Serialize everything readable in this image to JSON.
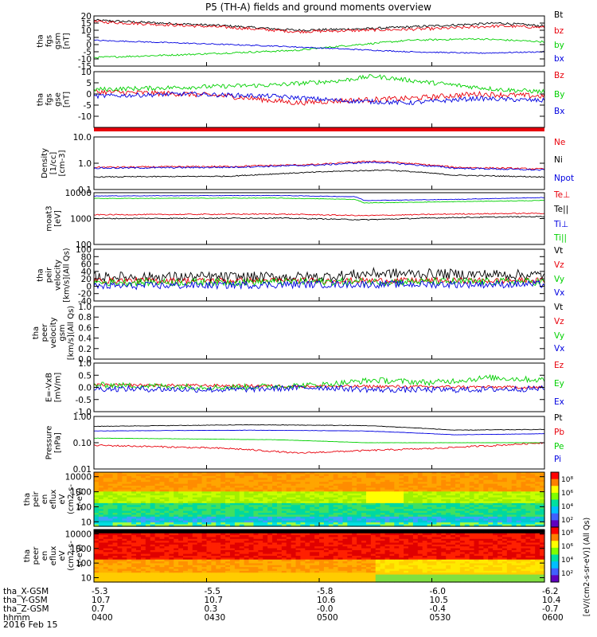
{
  "title": "P5 (TH-A) fields and ground moments overview",
  "date": "2016 Feb 15",
  "colors": {
    "black": "#000000",
    "red": "#e8000b",
    "green": "#00d000",
    "blue": "#0000e0"
  },
  "orbit": {
    "row_labels": [
      "tha_X-GSM",
      "tha_Y-GSM",
      "tha_Z-GSM",
      "hhmm"
    ],
    "columns": [
      [
        "-5.3",
        "10.7",
        "0.7",
        "0400"
      ],
      [
        "-5.5",
        "10.7",
        "0.3",
        "0430"
      ],
      [
        "-5.8",
        "10.6",
        "-0.0",
        "0500"
      ],
      [
        "-6.0",
        "10.5",
        "-0.4",
        "0530"
      ],
      [
        "-6.2",
        "10.4",
        "-0.7",
        "0600"
      ]
    ]
  },
  "colorbar": {
    "label": "[eV/(cm2-s-sr-eV)] (All Qs)",
    "upper_ticks": [
      "10⁸",
      "10⁶",
      "10⁴",
      "10²"
    ],
    "lower_ticks": [
      "10⁸",
      "10⁶",
      "10⁴",
      "10²"
    ]
  },
  "chart_data": [
    {
      "id": "p1",
      "type": "line",
      "ylabel": [
        "tha",
        "fgs",
        "gsm",
        "[nT]"
      ],
      "ylim": [
        -15,
        20
      ],
      "scale": "linear",
      "ticks": [
        "20",
        "15",
        "10",
        "5",
        "0",
        "-5",
        "-10",
        "-15"
      ],
      "series": [
        {
          "name": "Bt",
          "color": "black",
          "points": [
            [
              0,
              17
            ],
            [
              0.15,
              15
            ],
            [
              0.3,
              13
            ],
            [
              0.45,
              10
            ],
            [
              0.6,
              11
            ],
            [
              0.75,
              13
            ],
            [
              0.9,
              15
            ],
            [
              1,
              13
            ]
          ],
          "noise": 0.8
        },
        {
          "name": "bz",
          "color": "red",
          "points": [
            [
              0,
              16
            ],
            [
              0.15,
              14
            ],
            [
              0.3,
              12
            ],
            [
              0.45,
              9
            ],
            [
              0.6,
              10
            ],
            [
              0.75,
              11
            ],
            [
              0.9,
              13
            ],
            [
              1,
              12
            ]
          ],
          "noise": 1.0
        },
        {
          "name": "by",
          "color": "green",
          "points": [
            [
              0,
              -9
            ],
            [
              0.2,
              -7
            ],
            [
              0.45,
              -4
            ],
            [
              0.55,
              -1
            ],
            [
              0.7,
              3
            ],
            [
              0.85,
              4
            ],
            [
              1,
              2
            ]
          ],
          "noise": 0.6
        },
        {
          "name": "bx",
          "color": "blue",
          "points": [
            [
              0,
              3
            ],
            [
              0.2,
              1
            ],
            [
              0.4,
              -1
            ],
            [
              0.55,
              -3
            ],
            [
              0.7,
              -5
            ],
            [
              0.85,
              -6
            ],
            [
              1,
              -5
            ]
          ],
          "noise": 0.4
        }
      ]
    },
    {
      "id": "p2",
      "type": "line",
      "ylabel": [
        "tha",
        "fgs",
        "gse",
        "[nT]"
      ],
      "ylim": [
        -15,
        10
      ],
      "scale": "linear",
      "ticks": [
        "10",
        "5",
        "0",
        "-5",
        "-10"
      ],
      "series": [
        {
          "name": "Bz",
          "color": "red",
          "points": [
            [
              0,
              1
            ],
            [
              0.2,
              0
            ],
            [
              0.3,
              -1
            ],
            [
              0.45,
              -4
            ],
            [
              0.55,
              -3
            ],
            [
              0.7,
              -2
            ],
            [
              0.85,
              0
            ],
            [
              1,
              -1
            ]
          ],
          "noise": 1.2
        },
        {
          "name": "By",
          "color": "green",
          "points": [
            [
              0,
              2
            ],
            [
              0.2,
              3
            ],
            [
              0.4,
              4
            ],
            [
              0.55,
              6
            ],
            [
              0.62,
              8
            ],
            [
              0.75,
              5
            ],
            [
              0.9,
              2
            ],
            [
              1,
              1
            ]
          ],
          "noise": 1.0
        },
        {
          "name": "Bx",
          "color": "blue",
          "points": [
            [
              0,
              -1
            ],
            [
              0.2,
              0
            ],
            [
              0.4,
              -1
            ],
            [
              0.55,
              -3
            ],
            [
              0.7,
              -4
            ],
            [
              0.85,
              -2
            ],
            [
              1,
              -3
            ]
          ],
          "noise": 1.0
        }
      ]
    },
    {
      "id": "p3",
      "type": "line",
      "ylabel": [
        "Density",
        "[1/cc]",
        "[cm-3]"
      ],
      "ylim": [
        0.1,
        10
      ],
      "scale": "log",
      "ticks": [
        "10.0",
        "1.0",
        "0.1"
      ],
      "series": [
        {
          "name": "Ne",
          "color": "red",
          "points": [
            [
              0,
              0.7
            ],
            [
              0.3,
              0.75
            ],
            [
              0.5,
              0.9
            ],
            [
              0.62,
              1.2
            ],
            [
              0.8,
              0.7
            ],
            [
              1,
              0.6
            ]
          ],
          "noise": 0.03
        },
        {
          "name": "Ni",
          "color": "black",
          "points": [
            [
              0,
              0.3
            ],
            [
              0.3,
              0.32
            ],
            [
              0.55,
              0.5
            ],
            [
              0.65,
              0.55
            ],
            [
              0.8,
              0.35
            ],
            [
              1,
              0.3
            ]
          ],
          "noise": 0.02
        },
        {
          "name": "Npot",
          "color": "blue",
          "points": [
            [
              0,
              0.65
            ],
            [
              0.3,
              0.7
            ],
            [
              0.5,
              0.85
            ],
            [
              0.62,
              1.1
            ],
            [
              0.8,
              0.65
            ],
            [
              1,
              0.55
            ]
          ],
          "noise": 0.03
        }
      ]
    },
    {
      "id": "p4",
      "type": "line",
      "ylabel": [
        "moat3",
        "[eV]"
      ],
      "ylim": [
        100,
        10000
      ],
      "scale": "log",
      "ticks": [
        "10000",
        "1000",
        "100"
      ],
      "series": [
        {
          "name": "Te⊥",
          "color": "red",
          "points": [
            [
              0,
              1400
            ],
            [
              0.4,
              1500
            ],
            [
              0.6,
              1300
            ],
            [
              0.8,
              1500
            ],
            [
              1,
              1600
            ]
          ],
          "noise": 0.02
        },
        {
          "name": "Te||",
          "color": "black",
          "points": [
            [
              0,
              1000
            ],
            [
              0.4,
              1050
            ],
            [
              0.6,
              900
            ],
            [
              0.8,
              1100
            ],
            [
              1,
              1200
            ]
          ],
          "noise": 0.02
        },
        {
          "name": "Ti⊥",
          "color": "blue",
          "points": [
            [
              0,
              7500
            ],
            [
              0.4,
              7800
            ],
            [
              0.58,
              7000
            ],
            [
              0.6,
              5000
            ],
            [
              0.8,
              5500
            ],
            [
              1,
              6500
            ]
          ],
          "noise": 0.01
        },
        {
          "name": "Ti||",
          "color": "green",
          "points": [
            [
              0,
              6000
            ],
            [
              0.4,
              6200
            ],
            [
              0.58,
              5500
            ],
            [
              0.6,
              4000
            ],
            [
              0.8,
              4500
            ],
            [
              1,
              5000
            ]
          ],
          "noise": 0.01
        }
      ]
    },
    {
      "id": "p5",
      "type": "line",
      "ylabel": [
        "tha",
        "peir",
        "velocity",
        "[km/s](All Qs)"
      ],
      "ylim": [
        -40,
        100
      ],
      "scale": "linear",
      "ticks": [
        "100",
        "80",
        "60",
        "40",
        "20",
        "0",
        "-20",
        "-40"
      ],
      "series": [
        {
          "name": "Vt",
          "color": "black",
          "points": [
            [
              0,
              25
            ],
            [
              0.5,
              25
            ],
            [
              0.62,
              35
            ],
            [
              1,
              30
            ]
          ],
          "noise": 14
        },
        {
          "name": "Vz",
          "color": "red",
          "points": [
            [
              0,
              15
            ],
            [
              0.5,
              15
            ],
            [
              1,
              15
            ]
          ],
          "noise": 8
        },
        {
          "name": "Vy",
          "color": "green",
          "points": [
            [
              0,
              10
            ],
            [
              0.5,
              12
            ],
            [
              1,
              12
            ]
          ],
          "noise": 10
        },
        {
          "name": "Vx",
          "color": "blue",
          "points": [
            [
              0,
              0
            ],
            [
              0.5,
              5
            ],
            [
              1,
              5
            ]
          ],
          "noise": 10
        }
      ]
    },
    {
      "id": "p6",
      "type": "line",
      "ylabel": [
        "tha",
        "peer",
        "velocity",
        "gsm",
        "[km/s](All Qs)"
      ],
      "ylim": [
        0,
        1
      ],
      "scale": "linear",
      "ticks": [
        "1.0",
        "0.8",
        "0.6",
        "0.4",
        "0.2",
        "0.0"
      ],
      "series": [
        {
          "name": "Vt",
          "color": "black",
          "points": []
        },
        {
          "name": "Vz",
          "color": "red",
          "points": []
        },
        {
          "name": "Vy",
          "color": "green",
          "points": []
        },
        {
          "name": "Vx",
          "color": "blue",
          "points": []
        }
      ]
    },
    {
      "id": "p7",
      "type": "line",
      "ylabel": [
        "E=-VxB",
        "[mV/m]"
      ],
      "ylim": [
        -1,
        1
      ],
      "scale": "linear",
      "ticks": [
        "1.0",
        "0.5",
        "0.0",
        "-0.5",
        "-1.0"
      ],
      "series": [
        {
          "name": "Ez",
          "color": "red",
          "points": [
            [
              0,
              0.1
            ],
            [
              0.5,
              0.05
            ],
            [
              1,
              0.0
            ]
          ],
          "noise": 0.06
        },
        {
          "name": "Ey",
          "color": "green",
          "points": [
            [
              0,
              0.1
            ],
            [
              0.3,
              0.0
            ],
            [
              0.5,
              0.1
            ],
            [
              0.62,
              0.3
            ],
            [
              0.75,
              0.2
            ],
            [
              0.88,
              0.4
            ],
            [
              1,
              0.3
            ]
          ],
          "noise": 0.12
        },
        {
          "name": "Ex",
          "color": "blue",
          "points": [
            [
              0,
              -0.05
            ],
            [
              0.3,
              -0.1
            ],
            [
              0.5,
              0.0
            ],
            [
              0.62,
              -0.1
            ],
            [
              0.8,
              -0.1
            ],
            [
              1,
              -0.05
            ]
          ],
          "noise": 0.12
        }
      ]
    },
    {
      "id": "p8",
      "type": "line",
      "ylabel": [
        "Pressure",
        "[nPa]"
      ],
      "ylim": [
        0.01,
        1
      ],
      "scale": "log",
      "ticks": [
        "1.00",
        "0.10",
        "0.01"
      ],
      "series": [
        {
          "name": "Pt",
          "color": "black",
          "points": [
            [
              0,
              0.42
            ],
            [
              0.35,
              0.48
            ],
            [
              0.6,
              0.45
            ],
            [
              0.8,
              0.3
            ],
            [
              1,
              0.32
            ]
          ],
          "noise": 0.01
        },
        {
          "name": "Pb",
          "color": "red",
          "points": [
            [
              0,
              0.08
            ],
            [
              0.3,
              0.06
            ],
            [
              0.45,
              0.04
            ],
            [
              0.6,
              0.05
            ],
            [
              0.75,
              0.06
            ],
            [
              0.9,
              0.08
            ],
            [
              1,
              0.1
            ]
          ],
          "noise": 0.03
        },
        {
          "name": "Pe",
          "color": "green",
          "points": [
            [
              0,
              0.15
            ],
            [
              0.4,
              0.13
            ],
            [
              0.6,
              0.1
            ],
            [
              0.8,
              0.1
            ],
            [
              1,
              0.1
            ]
          ],
          "noise": 0.005
        },
        {
          "name": "Pi",
          "color": "blue",
          "points": [
            [
              0,
              0.28
            ],
            [
              0.35,
              0.3
            ],
            [
              0.6,
              0.28
            ],
            [
              0.8,
              0.2
            ],
            [
              1,
              0.22
            ]
          ],
          "noise": 0.005
        }
      ]
    },
    {
      "id": "p9",
      "type": "heatmap",
      "ylabel": [
        "tha",
        "peir",
        "en",
        "eflux",
        "eV",
        "(cm2-s-",
        "sr-eV)"
      ],
      "ylim": [
        5,
        20000
      ],
      "scale": "log",
      "ticks": [
        "10000",
        "1000",
        "100",
        "10"
      ]
    },
    {
      "id": "p10",
      "type": "heatmap",
      "ylabel": [
        "tha",
        "peer",
        "en",
        "eflux",
        "eV",
        "(cm2-s-",
        "sr-eV)"
      ],
      "ylim": [
        5,
        20000
      ],
      "scale": "log",
      "ticks": [
        "10000",
        "1000",
        "100",
        "10"
      ]
    }
  ]
}
